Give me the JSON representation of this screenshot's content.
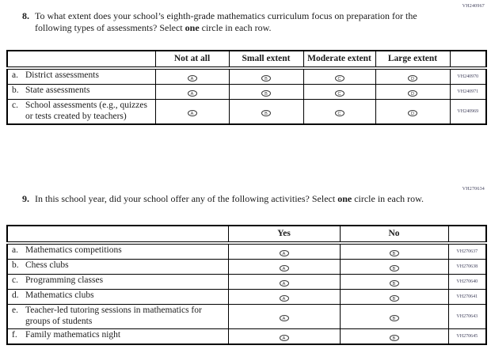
{
  "questions": [
    {
      "number": "8.",
      "code": "VH240967",
      "segments": [
        {
          "t": "To what extent does your school’s eighth-grade mathematics curriculum focus on preparation for the following types of assessments? Select ",
          "b": false
        },
        {
          "t": "one",
          "b": true
        },
        {
          "t": " circle in each row.",
          "b": false
        }
      ],
      "table": {
        "options": [
          {
            "label": "Not at all",
            "letter": "A"
          },
          {
            "label": "Small extent",
            "letter": "B"
          },
          {
            "label": "Moderate extent",
            "letter": "C"
          },
          {
            "label": "Large extent",
            "letter": "D"
          }
        ],
        "rows": [
          {
            "letter": "a.",
            "label": "District assessments",
            "code": "VH240970"
          },
          {
            "letter": "b.",
            "label": "State assessments",
            "code": "VH240971"
          },
          {
            "letter": "c.",
            "label": "School assessments (e.g., quizzes or tests created by teachers)",
            "code": "VH240969"
          }
        ]
      }
    },
    {
      "number": "9.",
      "code": "VH270634",
      "segments": [
        {
          "t": "In this school year, did your school offer any of the following activities? Select ",
          "b": false
        },
        {
          "t": "one",
          "b": true
        },
        {
          "t": " circle in each row.",
          "b": false
        }
      ],
      "table": {
        "options": [
          {
            "label": "Yes",
            "letter": "A"
          },
          {
            "label": "No",
            "letter": "B"
          }
        ],
        "rows": [
          {
            "letter": "a.",
            "label": "Mathematics competitions",
            "code": "VH270637"
          },
          {
            "letter": "b.",
            "label": "Chess clubs",
            "code": "VH270638"
          },
          {
            "letter": "c.",
            "label": "Programming classes",
            "code": "VH270640"
          },
          {
            "letter": "d.",
            "label": "Mathematics clubs",
            "code": "VH270641"
          },
          {
            "letter": "e.",
            "label": "Teacher-led tutoring sessions in mathematics for groups of students",
            "code": "VH270643"
          },
          {
            "letter": "f.",
            "label": "Family mathematics night",
            "code": "VH270645"
          }
        ]
      }
    }
  ]
}
